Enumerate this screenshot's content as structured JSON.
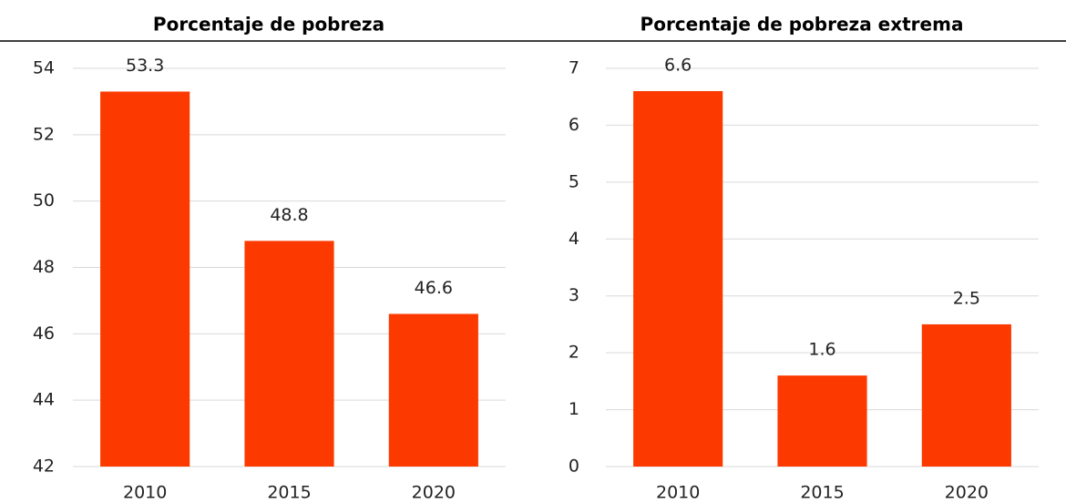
{
  "chart_data": [
    {
      "type": "bar",
      "title": "Porcentaje de pobreza",
      "categories": [
        "2010",
        "2015",
        "2020"
      ],
      "values": [
        53.3,
        48.8,
        46.6
      ],
      "color": "#fc3a00",
      "ylim": [
        42,
        54
      ],
      "yticks": [
        42,
        44,
        46,
        48,
        50,
        52,
        54
      ],
      "grid": true
    },
    {
      "type": "bar",
      "title": "Porcentaje de pobreza extrema",
      "categories": [
        "2010",
        "2015",
        "2020"
      ],
      "values": [
        6.6,
        1.6,
        2.5
      ],
      "color": "#fc3a00",
      "ylim": [
        0,
        7
      ],
      "yticks": [
        0,
        1,
        2,
        3,
        4,
        5,
        6,
        7
      ],
      "grid": true
    }
  ]
}
